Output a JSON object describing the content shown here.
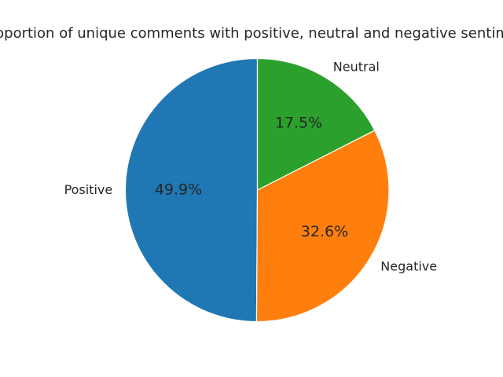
{
  "chart_data": {
    "type": "pie",
    "title": "Proportion of unique comments with positive, neutral and negative sentiment",
    "slices": [
      {
        "label": "Positive",
        "value": 49.9,
        "pct_label": "49.9%",
        "color": "#1f77b4"
      },
      {
        "label": "Negative",
        "value": 32.6,
        "pct_label": "32.6%",
        "color": "#ff7f0e"
      },
      {
        "label": "Neutral",
        "value": 17.5,
        "pct_label": "17.5%",
        "color": "#2ca02c"
      }
    ],
    "start_angle_deg": 90,
    "direction": "counterclockwise",
    "legend": "none"
  }
}
